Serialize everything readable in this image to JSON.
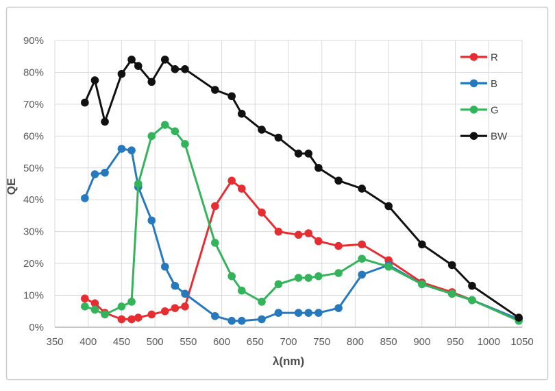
{
  "figure": {
    "background": "#ffffff",
    "border_color": "#c9cacb"
  },
  "style": {
    "grid_color": "#d9d9d9",
    "axis_line_color": "#a6a6a6",
    "tick_label_color": "#595959",
    "axis_title_color": "#4d4d4d",
    "legend_text_color": "#404040",
    "line_width": 3,
    "marker_radius": 5.8
  },
  "chart_data": {
    "type": "line",
    "title": "",
    "xlabel": "λ(nm)",
    "ylabel": "QE",
    "xlim": [
      350,
      1050
    ],
    "ylim": [
      0,
      90
    ],
    "grid": true,
    "legend_position": "inside-top-right",
    "x_ticks": [
      350,
      400,
      450,
      500,
      550,
      600,
      650,
      700,
      750,
      800,
      850,
      900,
      950,
      1000,
      1050
    ],
    "y_ticks": [
      0,
      10,
      20,
      30,
      40,
      50,
      60,
      70,
      80,
      90
    ],
    "y_tick_suffix": "%",
    "x": [
      395,
      410,
      425,
      450,
      465,
      475,
      495,
      515,
      530,
      545,
      590,
      615,
      630,
      660,
      685,
      715,
      730,
      745,
      775,
      810,
      850,
      900,
      945,
      975,
      1045
    ],
    "series": [
      {
        "name": "R",
        "color": "#e62e32",
        "values": [
          9,
          7.5,
          4.5,
          2.5,
          2.5,
          3,
          4,
          5,
          6,
          6.5,
          38,
          46,
          43.5,
          36,
          30,
          29,
          29.5,
          27,
          25.5,
          26,
          21,
          14,
          11,
          8.5,
          2.5
        ]
      },
      {
        "name": "B",
        "color": "#2779be",
        "values": [
          40.5,
          48,
          48.5,
          56,
          55.5,
          44,
          33.5,
          19,
          13,
          10.5,
          3.5,
          2,
          2,
          2.5,
          4.5,
          4.5,
          4.5,
          4.5,
          6,
          16.5,
          19.5,
          13.5,
          10.5,
          8.5,
          2.5
        ]
      },
      {
        "name": "G",
        "color": "#33b45a",
        "values": [
          6.5,
          5.5,
          4,
          6.5,
          8,
          45,
          60,
          63.5,
          61.5,
          57.5,
          26.5,
          16,
          11.5,
          8,
          13.5,
          15.5,
          15.5,
          16,
          17,
          21.5,
          19,
          13.5,
          10.5,
          8.5,
          2
        ]
      },
      {
        "name": "BW",
        "color": "#111111",
        "values": [
          70.5,
          77.5,
          64.5,
          79.5,
          84,
          82,
          77,
          84,
          81,
          81,
          74.5,
          72.5,
          67,
          62,
          59.5,
          54.5,
          54.5,
          50,
          46,
          43.5,
          38,
          26,
          19.5,
          13,
          3
        ]
      }
    ]
  }
}
